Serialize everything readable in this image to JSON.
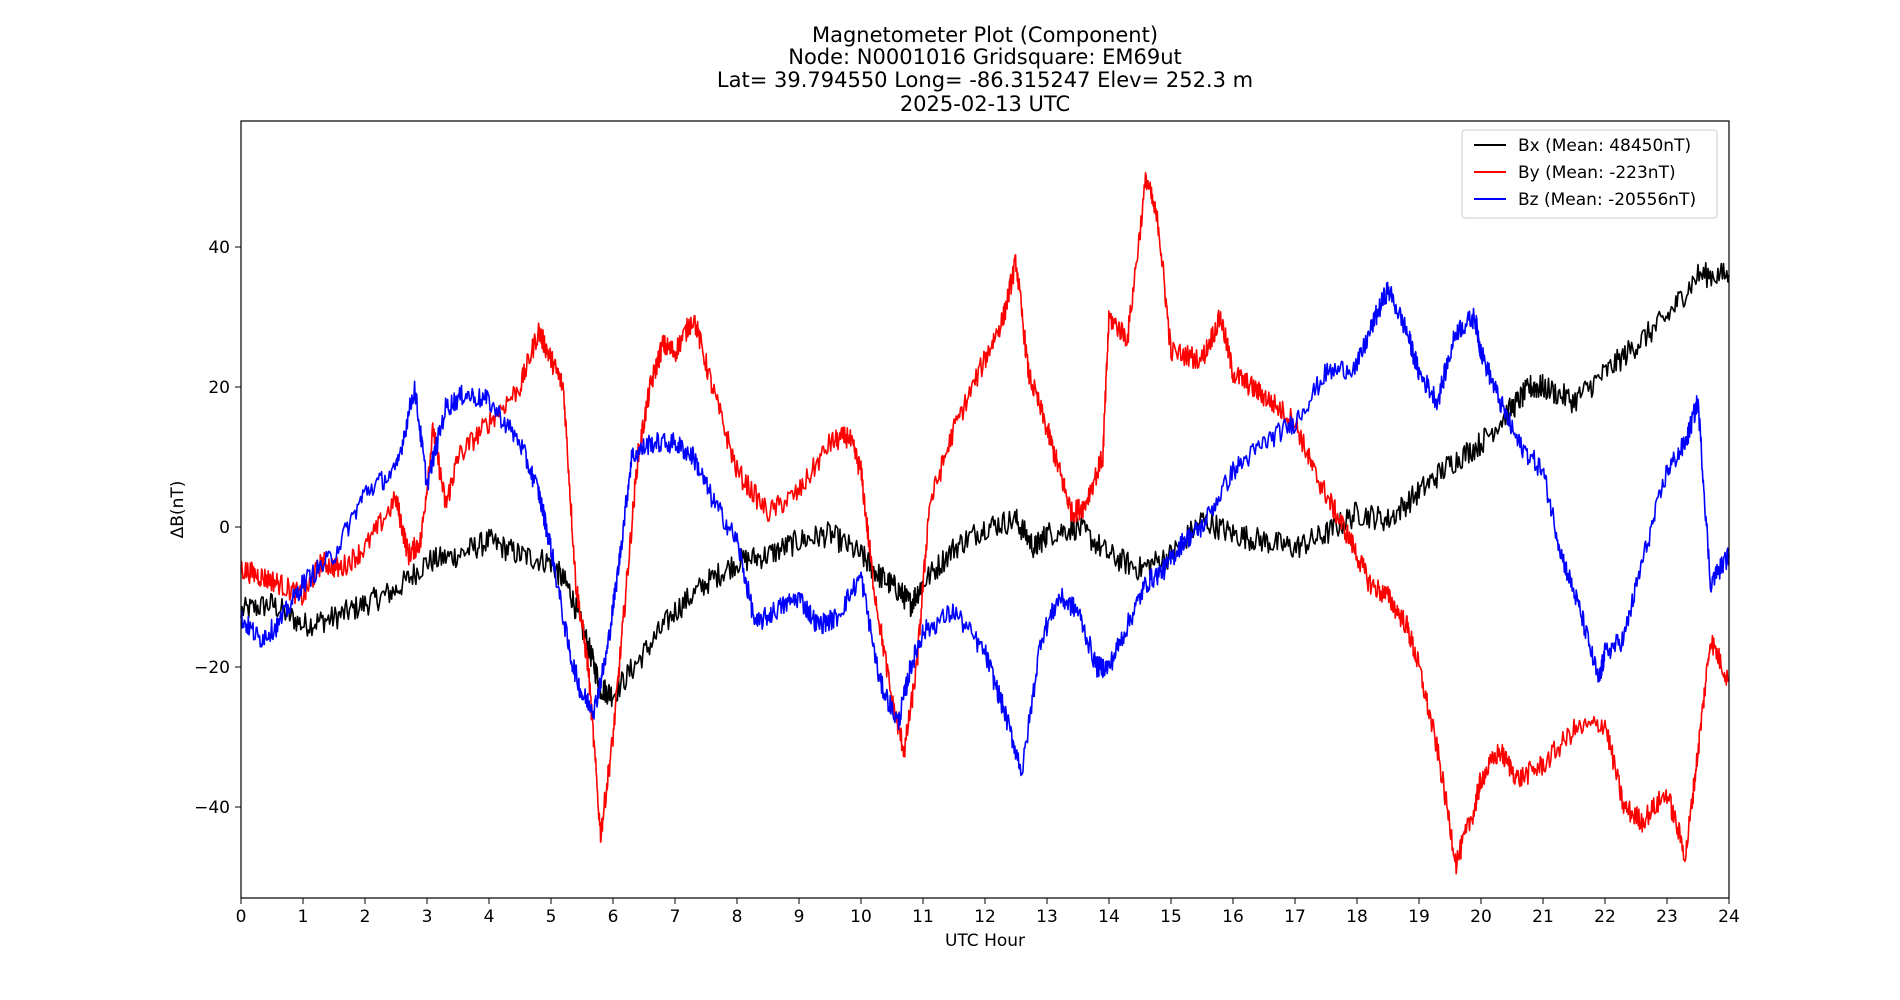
{
  "chart_data": {
    "type": "line",
    "title_lines": [
      "Magnetometer Plot (Component)",
      "Node:  N0001016     Gridsquare:  EM69ut",
      "Lat= 39.794550    Long= -86.315247    Elev= 252.3 m",
      "2025-02-13  UTC"
    ],
    "xlabel": "UTC Hour",
    "ylabel": "ΔB(nT)",
    "xlim": [
      0,
      24
    ],
    "ylim": [
      -53,
      58
    ],
    "xticks": [
      0,
      1,
      2,
      3,
      4,
      5,
      6,
      7,
      8,
      9,
      10,
      11,
      12,
      13,
      14,
      15,
      16,
      17,
      18,
      19,
      20,
      21,
      22,
      23,
      24
    ],
    "yticks": [
      -40,
      -20,
      0,
      20,
      40
    ],
    "grid": false,
    "legend_position": "top-right",
    "series": [
      {
        "name": "Bx (Mean: 48450nT)",
        "color": "#000000",
        "x": [
          0,
          0.5,
          1,
          1.5,
          2,
          2.5,
          3,
          3.5,
          4,
          4.5,
          5,
          5.3,
          5.6,
          5.8,
          6,
          6.5,
          7,
          7.5,
          8,
          8.5,
          9,
          9.5,
          10,
          10.3,
          10.6,
          10.8,
          11,
          11.5,
          12,
          12.5,
          12.8,
          13,
          13.5,
          14,
          14.5,
          15,
          15.5,
          16,
          16.5,
          17,
          17.5,
          18,
          18.5,
          19,
          19.5,
          20,
          20.5,
          20.8,
          21,
          21.5,
          22,
          22.5,
          23,
          23.5,
          24
        ],
        "y": [
          -12,
          -11,
          -14,
          -13,
          -11,
          -9,
          -5,
          -4,
          -2,
          -4,
          -5,
          -9,
          -17,
          -23,
          -24,
          -18,
          -12,
          -8,
          -5,
          -4,
          -2,
          -1,
          -4,
          -7,
          -9,
          -11,
          -8,
          -3,
          0,
          1,
          -3,
          -1,
          0,
          -4,
          -6,
          -4,
          1,
          -1,
          -2,
          -3,
          -1,
          2,
          1,
          5,
          9,
          12,
          17,
          20,
          20,
          18,
          22,
          26,
          30,
          36,
          36
        ]
      },
      {
        "name": "By (Mean: -223nT)",
        "color": "#ff0000",
        "x": [
          0,
          0.3,
          0.6,
          1,
          1.3,
          1.6,
          2,
          2.5,
          2.7,
          2.9,
          3.1,
          3.3,
          3.5,
          4,
          4.5,
          4.8,
          5,
          5.2,
          5.4,
          5.6,
          5.8,
          6,
          6.2,
          6.4,
          6.6,
          6.8,
          7,
          7.3,
          7.6,
          8,
          8.5,
          9,
          9.5,
          9.8,
          10,
          10.2,
          10.5,
          10.7,
          10.9,
          11.1,
          11.5,
          12,
          12.3,
          12.5,
          12.7,
          13,
          13.2,
          13.4,
          13.6,
          13.9,
          14,
          14.3,
          14.6,
          14.8,
          15,
          15.5,
          15.8,
          16,
          16.3,
          16.6,
          17,
          17.3,
          17.6,
          17.9,
          18.2,
          18.5,
          18.8,
          19,
          19.3,
          19.6,
          19.9,
          20,
          20.3,
          20.6,
          21,
          21.5,
          22,
          22.3,
          22.6,
          23,
          23.3,
          23.5,
          23.7,
          24
        ],
        "y": [
          -6,
          -7,
          -8,
          -10,
          -5,
          -6,
          -3,
          4,
          -4,
          -2,
          14,
          3,
          10,
          15,
          20,
          28,
          24,
          20,
          -8,
          -20,
          -44,
          -30,
          -10,
          10,
          20,
          26,
          25,
          30,
          20,
          8,
          2,
          5,
          12,
          13,
          8,
          -8,
          -25,
          -32,
          -20,
          3,
          14,
          24,
          30,
          38,
          22,
          14,
          8,
          2,
          3,
          10,
          30,
          27,
          50,
          43,
          25,
          24,
          30,
          22,
          20,
          18,
          15,
          8,
          3,
          -2,
          -8,
          -10,
          -14,
          -20,
          -32,
          -48,
          -40,
          -36,
          -32,
          -36,
          -34,
          -29,
          -28,
          -40,
          -42,
          -38,
          -47,
          -32,
          -16,
          -22
        ]
      },
      {
        "name": "Bz (Mean: -20556nT)",
        "color": "#0000ff",
        "x": [
          0,
          0.3,
          0.6,
          1,
          1.5,
          2,
          2.5,
          2.8,
          3,
          3.3,
          3.6,
          4,
          4.5,
          4.8,
          5,
          5.3,
          5.5,
          5.7,
          5.9,
          6.1,
          6.3,
          6.6,
          7,
          7.3,
          7.6,
          8,
          8.3,
          8.6,
          9,
          9.3,
          9.6,
          10,
          10.3,
          10.6,
          10.8,
          11,
          11.5,
          12,
          12.3,
          12.6,
          12.9,
          13.2,
          13.5,
          13.8,
          14,
          14.3,
          14.6,
          14.9,
          15.2,
          15.5,
          16,
          16.5,
          17,
          17.5,
          18,
          18.3,
          18.5,
          18.8,
          19,
          19.3,
          19.6,
          19.9,
          20,
          20.3,
          20.6,
          21,
          21.3,
          21.6,
          21.9,
          22,
          22.3,
          22.6,
          23,
          23.3,
          23.5,
          23.7,
          24
        ],
        "y": [
          -13,
          -16,
          -14,
          -8,
          -4,
          5,
          8,
          20,
          6,
          17,
          19,
          18,
          12,
          5,
          -3,
          -18,
          -24,
          -26,
          -18,
          -5,
          10,
          12,
          12,
          10,
          4,
          -2,
          -14,
          -12,
          -10,
          -14,
          -13,
          -7,
          -22,
          -28,
          -20,
          -15,
          -12,
          -18,
          -26,
          -35,
          -16,
          -10,
          -12,
          -20,
          -20,
          -14,
          -8,
          -6,
          -2,
          0,
          8,
          12,
          15,
          22,
          23,
          30,
          34,
          28,
          22,
          18,
          28,
          30,
          25,
          18,
          12,
          8,
          -4,
          -12,
          -22,
          -18,
          -16,
          -5,
          8,
          12,
          18,
          -8,
          -4
        ]
      }
    ]
  }
}
